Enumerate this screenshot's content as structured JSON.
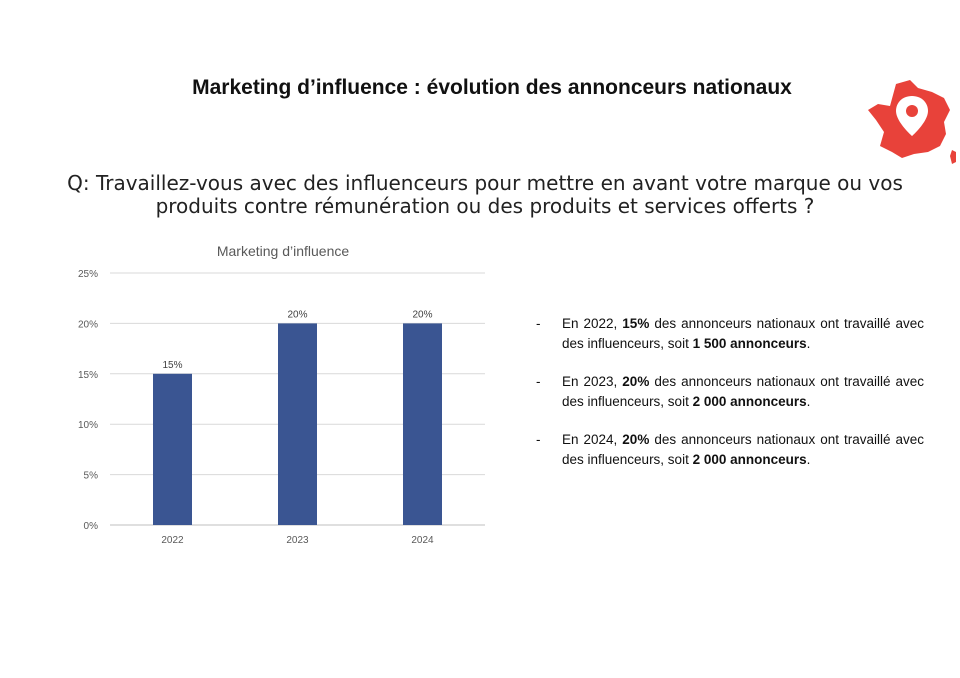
{
  "title": "Marketing d’influence : évolution des annonceurs nationaux",
  "question": "Q: Travaillez-vous avec des influenceurs pour mettre en avant votre marque ou vos produits contre rémunération ou des produits et services offerts ?",
  "map": {
    "icon": "france-map-pin-icon",
    "color": "#e8423a"
  },
  "chart_data": {
    "type": "bar",
    "title": "Marketing d’influence",
    "categories": [
      "2022",
      "2023",
      "2024"
    ],
    "values": [
      15,
      20,
      20
    ],
    "data_labels": [
      "15%",
      "20%",
      "20%"
    ],
    "ylim": [
      0,
      25
    ],
    "yticks": [
      0,
      5,
      10,
      15,
      20,
      25
    ],
    "ytick_labels": [
      "0%",
      "5%",
      "10%",
      "15%",
      "20%",
      "25%"
    ],
    "xlabel": "",
    "ylabel": "",
    "grid": true,
    "bar_color": "#3a5592"
  },
  "bullets": [
    {
      "dash": "-",
      "prefix": "En 2022, ",
      "percent": "15%",
      "middle": " des annonceurs nationaux ont travaillé avec des influenceurs, soit ",
      "count": "1 500 annonceurs",
      "suffix": "."
    },
    {
      "dash": "-",
      "prefix": "En 2023, ",
      "percent": "20%",
      "middle": " des annonceurs nationaux ont travaillé avec des influenceurs, soit ",
      "count": "2 000 annonceurs",
      "suffix": "."
    },
    {
      "dash": "-",
      "prefix": "En 2024, ",
      "percent": "20%",
      "middle": " des annonceurs nationaux ont travaillé avec des influenceurs, soit ",
      "count": "2 000 annonceurs",
      "suffix": "."
    }
  ]
}
